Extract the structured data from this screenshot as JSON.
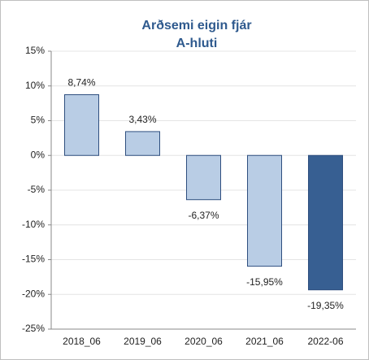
{
  "chart_data": {
    "type": "bar",
    "title": [
      "Arðsemi eigin fjár",
      "A-hluti"
    ],
    "categories": [
      "2018_06",
      "2019_06",
      "2020_06",
      "2021_06",
      "2022-06"
    ],
    "values": [
      8.74,
      3.43,
      -6.37,
      -15.95,
      -19.35
    ],
    "value_labels": [
      "8,74%",
      "3,43%",
      "-6,37%",
      "-15,95%",
      "-19,35%"
    ],
    "colors": [
      "#b9cde5",
      "#b9cde5",
      "#b9cde5",
      "#b9cde5",
      "#375f92"
    ],
    "edge_color": "#2f4f7f",
    "ylim": [
      -25,
      15
    ],
    "yticks": [
      {
        "value": -25,
        "label": "-25%"
      },
      {
        "value": -20,
        "label": "-20%"
      },
      {
        "value": -15,
        "label": "-15%"
      },
      {
        "value": -10,
        "label": "-10%"
      },
      {
        "value": -5,
        "label": "-5%"
      },
      {
        "value": 0,
        "label": "0%"
      },
      {
        "value": 5,
        "label": "5%"
      },
      {
        "value": 10,
        "label": "10%"
      },
      {
        "value": 15,
        "label": "15%"
      }
    ],
    "grid": true
  }
}
